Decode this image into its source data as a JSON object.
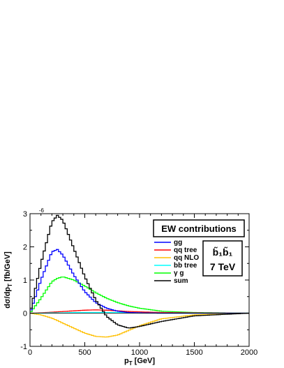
{
  "chart_data": {
    "type": "line",
    "title": "",
    "xlabel": "p",
    "xlabel_sub": "T",
    "xlabel_unit": " [GeV]",
    "ylabel": "dσ/dp",
    "ylabel_sub": "T",
    "ylabel_unit": " [fb/GeV]",
    "y_exponent": "-6",
    "xlim": [
      0,
      2000
    ],
    "ylim": [
      -1,
      3
    ],
    "x_ticks": [
      "0",
      "500",
      "1000",
      "1500",
      "2000"
    ],
    "x_tick_values": [
      0,
      500,
      1000,
      1500,
      2000
    ],
    "y_ticks": [
      "-1",
      "0",
      "1",
      "2",
      "3"
    ],
    "y_tick_values": [
      -1,
      0,
      1,
      2,
      3
    ],
    "grid": false,
    "legend_position": "top-right",
    "box_title": "EW contributions",
    "process_label": "b̃₁b̃₁",
    "energy_label": "7 TeV",
    "x": [
      0,
      100,
      200,
      250,
      300,
      400,
      500,
      600,
      700,
      800,
      900,
      1000,
      1200,
      1500,
      2000
    ],
    "series": [
      {
        "name": "gg",
        "color": "#0000ff",
        "values": [
          0.0,
          1.0,
          1.85,
          1.92,
          1.75,
          1.15,
          0.65,
          0.32,
          0.15,
          0.06,
          0.02,
          0.01,
          0.0,
          0.0,
          0.0
        ]
      },
      {
        "name": "qq tree",
        "color": "#ff0000",
        "values": [
          0.0,
          0.01,
          0.03,
          0.04,
          0.05,
          0.07,
          0.09,
          0.1,
          0.09,
          0.07,
          0.05,
          0.04,
          0.02,
          0.01,
          0.0
        ]
      },
      {
        "name": "qq NLO",
        "color": "#ffbf00",
        "values": [
          0.0,
          -0.05,
          -0.15,
          -0.22,
          -0.3,
          -0.45,
          -0.6,
          -0.7,
          -0.72,
          -0.66,
          -0.52,
          -0.38,
          -0.17,
          -0.05,
          0.0
        ]
      },
      {
        "name": "bb tree",
        "color": "#00ffff",
        "values": [
          0.0,
          0.0,
          0.01,
          0.01,
          0.01,
          0.02,
          0.02,
          0.02,
          0.02,
          0.02,
          0.01,
          0.01,
          0.0,
          0.0,
          0.0
        ]
      },
      {
        "name": "γ g",
        "color": "#00ff00",
        "values": [
          0.0,
          0.45,
          0.95,
          1.05,
          1.1,
          1.0,
          0.82,
          0.62,
          0.45,
          0.32,
          0.22,
          0.15,
          0.06,
          0.02,
          0.0
        ]
      },
      {
        "name": "sum",
        "color": "#000000",
        "values": [
          0.0,
          1.5,
          2.75,
          2.95,
          2.8,
          1.95,
          1.1,
          0.4,
          -0.1,
          -0.35,
          -0.45,
          -0.4,
          -0.25,
          -0.08,
          0.0
        ]
      }
    ]
  }
}
